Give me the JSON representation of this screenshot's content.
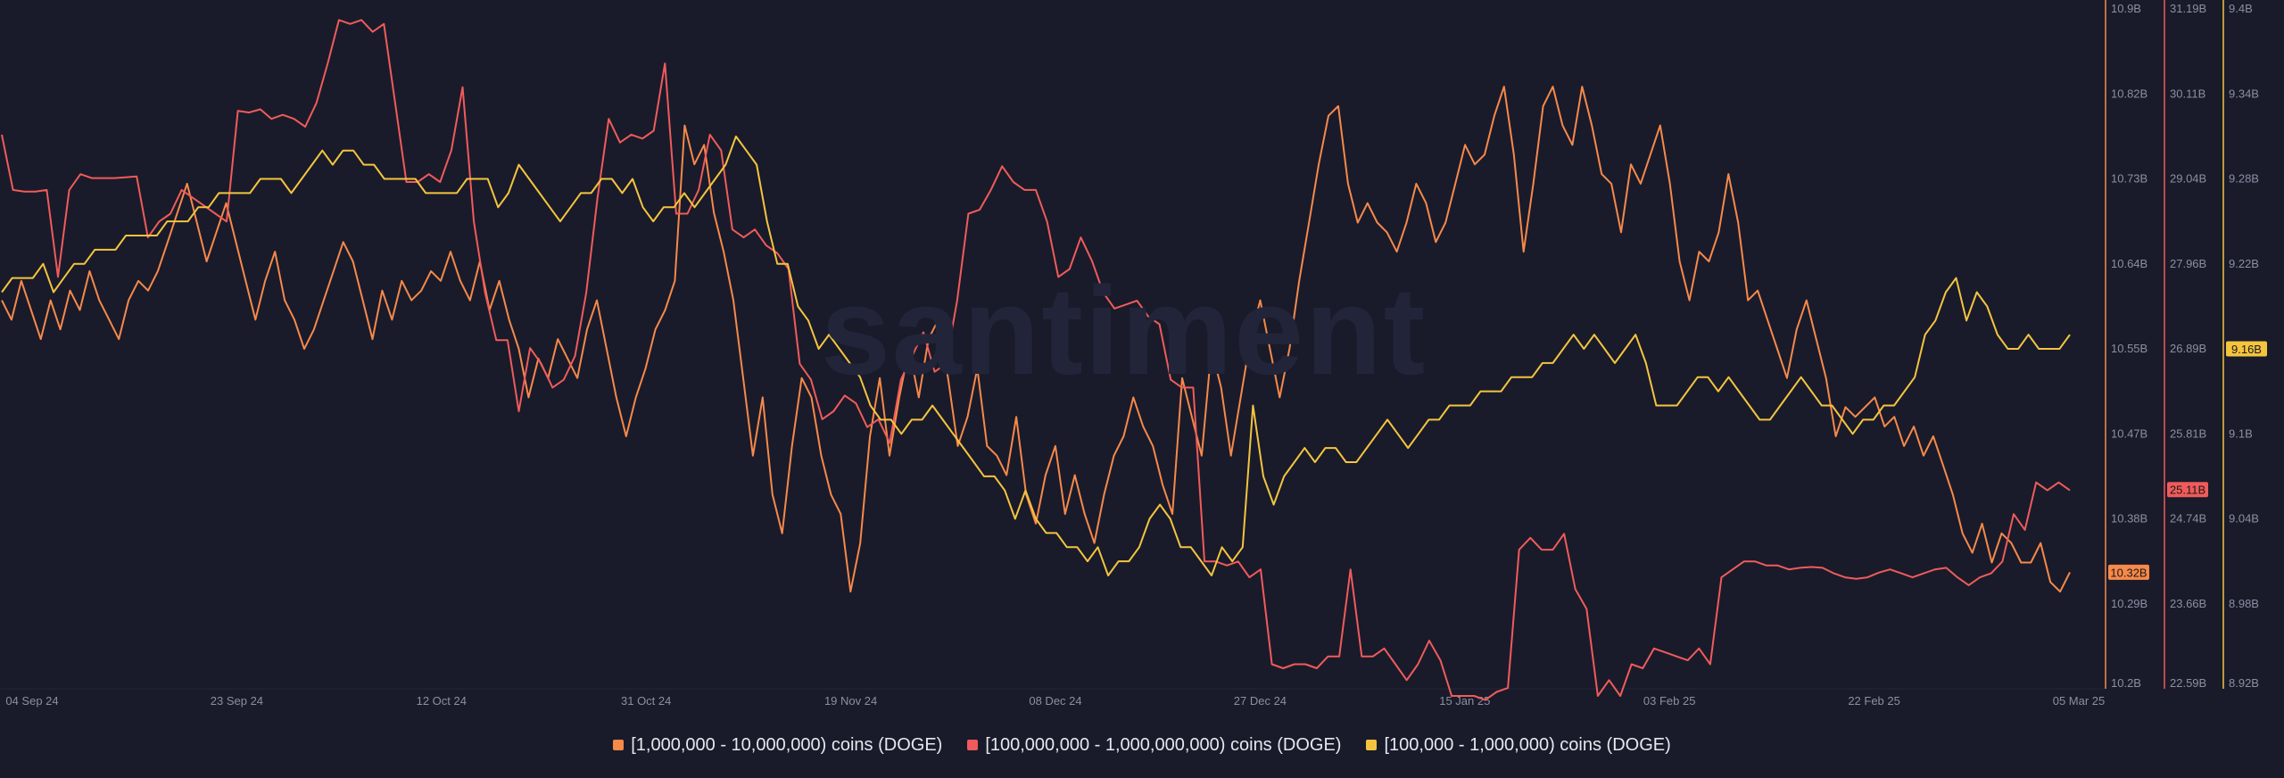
{
  "watermark": "santiment",
  "colors": {
    "background": "#191b2a",
    "grid": "#23263a",
    "tick_text": "#8b8fa3",
    "series1": "#f7894a",
    "series2": "#f05b5b",
    "series3": "#f4c43f"
  },
  "chart_data": {
    "type": "line",
    "x_labels": [
      "04 Sep 24",
      "23 Sep 24",
      "12 Oct 24",
      "31 Oct 24",
      "19 Nov 24",
      "08 Dec 24",
      "27 Dec 24",
      "15 Jan 25",
      "03 Feb 25",
      "22 Feb 25",
      "05 Mar 25"
    ],
    "x_range": [
      "2024-09-04",
      "2025-03-05"
    ],
    "axes": [
      {
        "id": "ax1",
        "color": "#f7894a",
        "ticks": [
          "10.9B",
          "10.82B",
          "10.73B",
          "10.64B",
          "10.55B",
          "10.47B",
          "10.38B",
          "10.29B",
          "10.2B"
        ],
        "range": [
          10.2,
          10.9
        ],
        "current_label": "10.32B",
        "current_value": 10.32
      },
      {
        "id": "ax2",
        "color": "#f05b5b",
        "ticks": [
          "31.19B",
          "30.11B",
          "29.04B",
          "27.96B",
          "26.89B",
          "25.81B",
          "24.74B",
          "23.66B",
          "22.59B"
        ],
        "range": [
          22.59,
          31.19
        ],
        "current_label": "25.11B",
        "current_value": 25.11
      },
      {
        "id": "ax3",
        "color": "#f4c43f",
        "ticks": [
          "9.4B",
          "9.34B",
          "9.28B",
          "9.22B",
          "9.16B",
          "9.1B",
          "9.04B",
          "8.98B",
          "8.92B"
        ],
        "range": [
          8.92,
          9.4
        ],
        "current_label": "9.16B",
        "current_value": 9.16
      }
    ],
    "series": [
      {
        "name": "[1,000,000 - 10,000,000) coins (DOGE)",
        "color": "#f7894a",
        "axis": 0,
        "values": [
          10.6,
          10.58,
          10.62,
          10.59,
          10.56,
          10.6,
          10.57,
          10.61,
          10.59,
          10.63,
          10.6,
          10.58,
          10.56,
          10.6,
          10.62,
          10.61,
          10.63,
          10.66,
          10.69,
          10.72,
          10.68,
          10.64,
          10.67,
          10.7,
          10.66,
          10.62,
          10.58,
          10.62,
          10.65,
          10.6,
          10.58,
          10.55,
          10.57,
          10.6,
          10.63,
          10.66,
          10.64,
          10.6,
          10.56,
          10.61,
          10.58,
          10.62,
          10.6,
          10.61,
          10.63,
          10.62,
          10.65,
          10.62,
          10.6,
          10.64,
          10.59,
          10.62,
          10.58,
          10.55,
          10.5,
          10.54,
          10.52,
          10.56,
          10.54,
          10.52,
          10.57,
          10.6,
          10.55,
          10.5,
          10.46,
          10.5,
          10.53,
          10.57,
          10.59,
          10.62,
          10.78,
          10.74,
          10.76,
          10.69,
          10.65,
          10.6,
          10.52,
          10.44,
          10.5,
          10.4,
          10.36,
          10.45,
          10.52,
          10.5,
          10.44,
          10.4,
          10.38,
          10.3,
          10.35,
          10.46,
          10.52,
          10.44,
          10.5,
          10.55,
          10.5,
          10.56,
          10.58,
          10.52,
          10.45,
          10.48,
          10.53,
          10.45,
          10.44,
          10.42,
          10.48,
          10.4,
          10.37,
          10.42,
          10.45,
          10.38,
          10.42,
          10.38,
          10.35,
          10.4,
          10.44,
          10.46,
          10.5,
          10.47,
          10.45,
          10.41,
          10.38,
          10.52,
          10.48,
          10.44,
          10.55,
          10.51,
          10.44,
          10.5,
          10.56,
          10.6,
          10.55,
          10.5,
          10.55,
          10.62,
          10.68,
          10.74,
          10.79,
          10.8,
          10.72,
          10.68,
          10.7,
          10.68,
          10.67,
          10.65,
          10.68,
          10.72,
          10.7,
          10.66,
          10.68,
          10.72,
          10.76,
          10.74,
          10.75,
          10.79,
          10.82,
          10.75,
          10.65,
          10.72,
          10.8,
          10.82,
          10.78,
          10.76,
          10.82,
          10.78,
          10.73,
          10.72,
          10.67,
          10.74,
          10.72,
          10.75,
          10.78,
          10.72,
          10.64,
          10.6,
          10.65,
          10.64,
          10.67,
          10.73,
          10.68,
          10.6,
          10.61,
          10.58,
          10.55,
          10.52,
          10.57,
          10.6,
          10.56,
          10.52,
          10.46,
          10.49,
          10.48,
          10.49,
          10.5,
          10.47,
          10.48,
          10.45,
          10.47,
          10.44,
          10.46,
          10.43,
          10.4,
          10.36,
          10.34,
          10.37,
          10.33,
          10.36,
          10.35,
          10.33,
          10.33,
          10.35,
          10.31,
          10.3,
          10.32
        ]
      },
      {
        "name": "[100,000,000 - 1,000,000,000) coins (DOGE)",
        "color": "#f05b5b",
        "axis": 1,
        "values": [
          29.6,
          28.9,
          28.88,
          28.88,
          28.9,
          27.8,
          28.9,
          29.1,
          29.05,
          29.05,
          29.05,
          29.06,
          29.07,
          28.3,
          28.5,
          28.6,
          28.9,
          28.8,
          28.7,
          28.6,
          28.5,
          29.9,
          29.88,
          29.92,
          29.8,
          29.85,
          29.8,
          29.7,
          30.0,
          30.5,
          31.05,
          31.0,
          31.05,
          30.9,
          31.0,
          30.0,
          29.0,
          29.0,
          29.1,
          29.0,
          29.4,
          30.2,
          28.5,
          27.6,
          27.0,
          27.0,
          26.1,
          26.9,
          26.7,
          26.4,
          26.5,
          26.8,
          27.6,
          28.8,
          29.8,
          29.5,
          29.6,
          29.55,
          29.65,
          30.5,
          28.6,
          28.6,
          28.9,
          29.6,
          29.4,
          28.4,
          28.3,
          28.4,
          28.2,
          28.1,
          27.9,
          26.7,
          26.5,
          26.0,
          26.1,
          26.3,
          26.2,
          25.9,
          26.0,
          25.7,
          26.5,
          26.8,
          27.1,
          26.6,
          26.7,
          27.5,
          28.6,
          28.65,
          28.9,
          29.2,
          29.0,
          28.9,
          28.9,
          28.5,
          27.8,
          27.9,
          28.3,
          28.0,
          27.6,
          27.4,
          27.45,
          27.5,
          27.3,
          27.2,
          26.5,
          26.4,
          26.4,
          24.2,
          24.2,
          24.15,
          24.2,
          24.0,
          24.1,
          22.9,
          22.85,
          22.9,
          22.9,
          22.85,
          23.0,
          23.0,
          24.1,
          23.0,
          23.0,
          23.1,
          22.9,
          22.7,
          22.9,
          23.2,
          22.95,
          22.5,
          22.5,
          22.5,
          22.45,
          22.55,
          22.6,
          24.35,
          24.5,
          24.35,
          24.35,
          24.55,
          23.85,
          23.6,
          22.5,
          22.7,
          22.5,
          22.9,
          22.85,
          23.1,
          23.05,
          23.0,
          22.95,
          23.1,
          22.9,
          24.0,
          24.1,
          24.2,
          24.2,
          24.15,
          24.15,
          24.1,
          24.12,
          24.13,
          24.12,
          24.05,
          24.0,
          23.98,
          24.0,
          24.06,
          24.1,
          24.05,
          24.0,
          24.05,
          24.1,
          24.12,
          24.0,
          23.9,
          24.0,
          24.05,
          24.2,
          24.8,
          24.6,
          25.2,
          25.1,
          25.2,
          25.1
        ]
      },
      {
        "name": "[100,000  - 1,000,000) coins (DOGE)",
        "color": "#f4c43f",
        "axis": 2,
        "values": [
          9.2,
          9.21,
          9.21,
          9.21,
          9.22,
          9.2,
          9.21,
          9.22,
          9.22,
          9.23,
          9.23,
          9.23,
          9.24,
          9.24,
          9.24,
          9.24,
          9.25,
          9.25,
          9.25,
          9.26,
          9.26,
          9.27,
          9.27,
          9.27,
          9.27,
          9.28,
          9.28,
          9.28,
          9.27,
          9.28,
          9.29,
          9.3,
          9.29,
          9.3,
          9.3,
          9.29,
          9.29,
          9.28,
          9.28,
          9.28,
          9.28,
          9.27,
          9.27,
          9.27,
          9.27,
          9.28,
          9.28,
          9.28,
          9.26,
          9.27,
          9.29,
          9.28,
          9.27,
          9.26,
          9.25,
          9.26,
          9.27,
          9.27,
          9.28,
          9.28,
          9.27,
          9.28,
          9.26,
          9.25,
          9.26,
          9.26,
          9.27,
          9.26,
          9.27,
          9.28,
          9.29,
          9.31,
          9.3,
          9.29,
          9.25,
          9.22,
          9.22,
          9.19,
          9.18,
          9.16,
          9.17,
          9.16,
          9.15,
          9.14,
          9.12,
          9.11,
          9.11,
          9.1,
          9.11,
          9.11,
          9.12,
          9.11,
          9.1,
          9.09,
          9.08,
          9.07,
          9.07,
          9.06,
          9.04,
          9.06,
          9.04,
          9.03,
          9.03,
          9.02,
          9.02,
          9.01,
          9.02,
          9.0,
          9.01,
          9.01,
          9.02,
          9.04,
          9.05,
          9.04,
          9.02,
          9.02,
          9.01,
          9.0,
          9.02,
          9.01,
          9.02,
          9.12,
          9.07,
          9.05,
          9.07,
          9.08,
          9.09,
          9.08,
          9.09,
          9.09,
          9.08,
          9.08,
          9.09,
          9.1,
          9.11,
          9.1,
          9.09,
          9.1,
          9.11,
          9.11,
          9.12,
          9.12,
          9.12,
          9.13,
          9.13,
          9.13,
          9.14,
          9.14,
          9.14,
          9.15,
          9.15,
          9.16,
          9.17,
          9.16,
          9.17,
          9.16,
          9.15,
          9.16,
          9.17,
          9.15,
          9.12,
          9.12,
          9.12,
          9.13,
          9.14,
          9.14,
          9.13,
          9.14,
          9.13,
          9.12,
          9.11,
          9.11,
          9.12,
          9.13,
          9.14,
          9.13,
          9.12,
          9.12,
          9.11,
          9.1,
          9.11,
          9.11,
          9.12,
          9.12,
          9.13,
          9.14,
          9.17,
          9.18,
          9.2,
          9.21,
          9.18,
          9.2,
          9.19,
          9.17,
          9.16,
          9.16,
          9.17,
          9.16,
          9.16,
          9.16,
          9.17
        ]
      }
    ]
  }
}
